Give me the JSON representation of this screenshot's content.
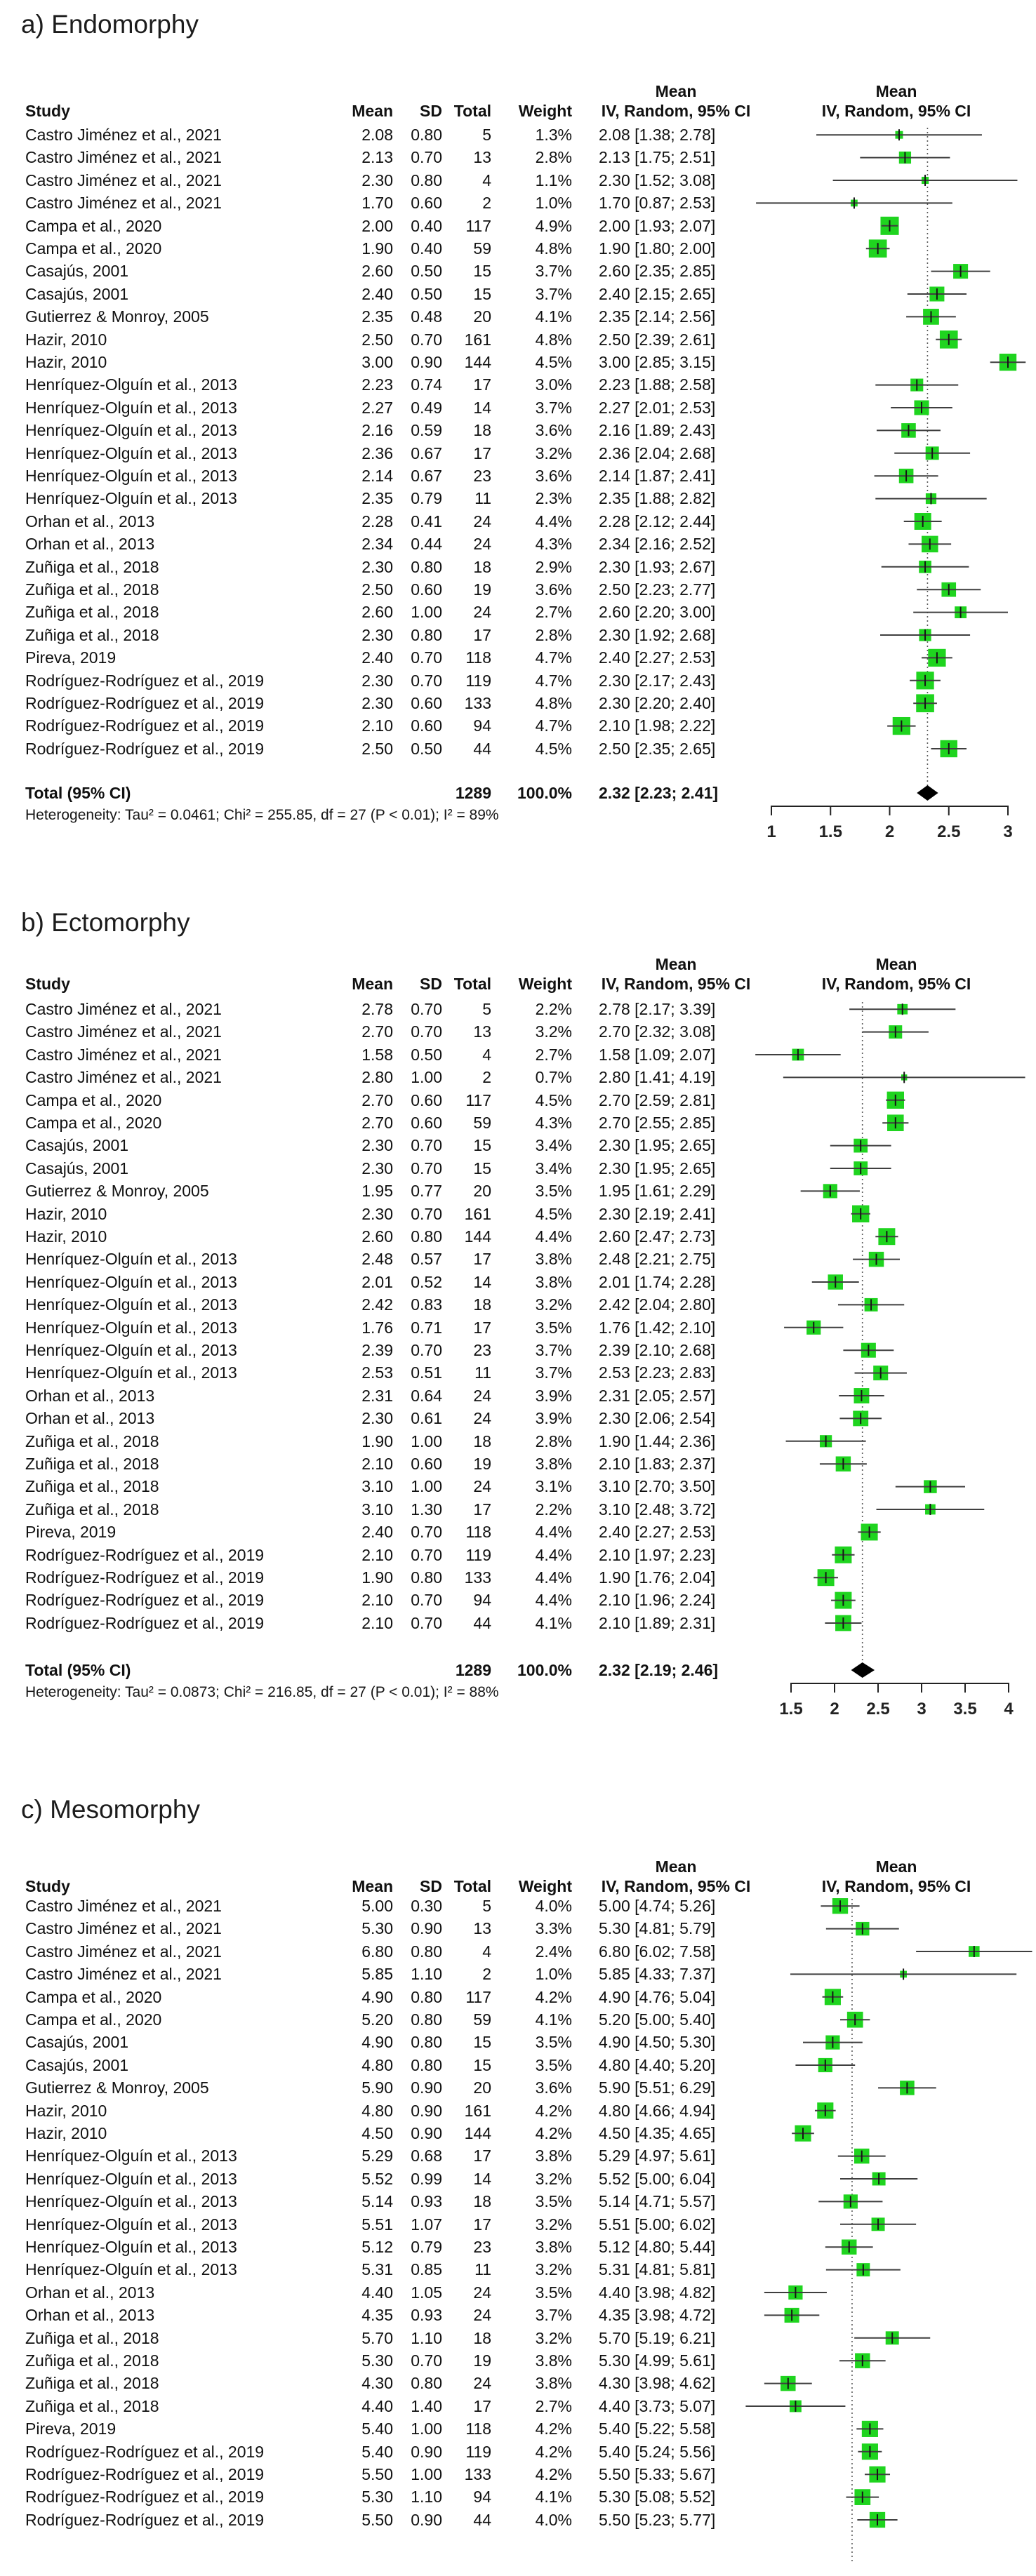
{
  "figure": {
    "marker_color": "#1fd41f",
    "ci_line_color": "#3f3f3f",
    "diamond_color": "#000000",
    "row_format": [
      "study",
      "mean",
      "sd",
      "total",
      "weight",
      "ci_text",
      "ci_low",
      "ci_high"
    ]
  },
  "chart_data": [
    {
      "type": "forest",
      "panel_label": "a) Endomorphy",
      "effect_measure": "Mean",
      "model": "IV, Random, 95% CI",
      "columns": [
        "Study",
        "Mean",
        "SD",
        "Total",
        "Weight",
        "IV, Random, 95% CI"
      ],
      "studies": [
        [
          "Castro Jiménez et al., 2021",
          "2.08",
          "0.80",
          "5",
          "1.3%",
          "2.08 [1.38; 2.78]",
          1.38,
          2.78
        ],
        [
          "Castro Jiménez et al., 2021",
          "2.13",
          "0.70",
          "13",
          "2.8%",
          "2.13 [1.75; 2.51]",
          1.75,
          2.51
        ],
        [
          "Castro Jiménez et al., 2021",
          "2.30",
          "0.80",
          "4",
          "1.1%",
          "2.30 [1.52; 3.08]",
          1.52,
          3.08
        ],
        [
          "Castro Jiménez et al., 2021",
          "1.70",
          "0.60",
          "2",
          "1.0%",
          "1.70 [0.87; 2.53]",
          0.87,
          2.53
        ],
        [
          "Campa et al., 2020",
          "2.00",
          "0.40",
          "117",
          "4.9%",
          "2.00 [1.93; 2.07]",
          1.93,
          2.07
        ],
        [
          "Campa et al., 2020",
          "1.90",
          "0.40",
          "59",
          "4.8%",
          "1.90 [1.80; 2.00]",
          1.8,
          2.0
        ],
        [
          "Casajús, 2001",
          "2.60",
          "0.50",
          "15",
          "3.7%",
          "2.60 [2.35; 2.85]",
          2.35,
          2.85
        ],
        [
          "Casajús, 2001",
          "2.40",
          "0.50",
          "15",
          "3.7%",
          "2.40 [2.15; 2.65]",
          2.15,
          2.65
        ],
        [
          "Gutierrez & Monroy, 2005",
          "2.35",
          "0.48",
          "20",
          "4.1%",
          "2.35 [2.14; 2.56]",
          2.14,
          2.56
        ],
        [
          "Hazir, 2010",
          "2.50",
          "0.70",
          "161",
          "4.8%",
          "2.50 [2.39; 2.61]",
          2.39,
          2.61
        ],
        [
          "Hazir, 2010",
          "3.00",
          "0.90",
          "144",
          "4.5%",
          "3.00 [2.85; 3.15]",
          2.85,
          3.15
        ],
        [
          "Henríquez-Olguín et al., 2013",
          "2.23",
          "0.74",
          "17",
          "3.0%",
          "2.23 [1.88; 2.58]",
          1.88,
          2.58
        ],
        [
          "Henríquez-Olguín et al., 2013",
          "2.27",
          "0.49",
          "14",
          "3.7%",
          "2.27 [2.01; 2.53]",
          2.01,
          2.53
        ],
        [
          "Henríquez-Olguín et al., 2013",
          "2.16",
          "0.59",
          "18",
          "3.6%",
          "2.16 [1.89; 2.43]",
          1.89,
          2.43
        ],
        [
          "Henríquez-Olguín et al., 2013",
          "2.36",
          "0.67",
          "17",
          "3.2%",
          "2.36 [2.04; 2.68]",
          2.04,
          2.68
        ],
        [
          "Henríquez-Olguín et al., 2013",
          "2.14",
          "0.67",
          "23",
          "3.6%",
          "2.14 [1.87; 2.41]",
          1.87,
          2.41
        ],
        [
          "Henríquez-Olguín et al., 2013",
          "2.35",
          "0.79",
          "11",
          "2.3%",
          "2.35 [1.88; 2.82]",
          1.88,
          2.82
        ],
        [
          "Orhan et al., 2013",
          "2.28",
          "0.41",
          "24",
          "4.4%",
          "2.28 [2.12; 2.44]",
          2.12,
          2.44
        ],
        [
          "Orhan et al., 2013",
          "2.34",
          "0.44",
          "24",
          "4.3%",
          "2.34 [2.16; 2.52]",
          2.16,
          2.52
        ],
        [
          "Zuñiga et al., 2018",
          "2.30",
          "0.80",
          "18",
          "2.9%",
          "2.30 [1.93; 2.67]",
          1.93,
          2.67
        ],
        [
          "Zuñiga et al., 2018",
          "2.50",
          "0.60",
          "19",
          "3.6%",
          "2.50 [2.23; 2.77]",
          2.23,
          2.77
        ],
        [
          "Zuñiga et al., 2018",
          "2.60",
          "1.00",
          "24",
          "2.7%",
          "2.60 [2.20; 3.00]",
          2.2,
          3.0
        ],
        [
          "Zuñiga et al., 2018",
          "2.30",
          "0.80",
          "17",
          "2.8%",
          "2.30 [1.92; 2.68]",
          1.92,
          2.68
        ],
        [
          "Pireva, 2019",
          "2.40",
          "0.70",
          "118",
          "4.7%",
          "2.40 [2.27; 2.53]",
          2.27,
          2.53
        ],
        [
          "Rodríguez-Rodríguez et al., 2019",
          "2.30",
          "0.70",
          "119",
          "4.7%",
          "2.30 [2.17; 2.43]",
          2.17,
          2.43
        ],
        [
          "Rodríguez-Rodríguez et al., 2019",
          "2.30",
          "0.60",
          "133",
          "4.8%",
          "2.30 [2.20; 2.40]",
          2.2,
          2.4
        ],
        [
          "Rodríguez-Rodríguez et al., 2019",
          "2.10",
          "0.60",
          "94",
          "4.7%",
          "2.10 [1.98; 2.22]",
          1.98,
          2.22
        ],
        [
          "Rodríguez-Rodríguez et al., 2019",
          "2.50",
          "0.50",
          "44",
          "4.5%",
          "2.50 [2.35; 2.65]",
          2.35,
          2.65
        ]
      ],
      "total": {
        "label": "Total (95% CI)",
        "total": "1289",
        "weight": "100.0%",
        "ci_text": "2.32 [2.23; 2.41]",
        "mean": 2.32,
        "lo": 2.23,
        "hi": 2.41
      },
      "heterogeneity": "Heterogeneity: Tau² = 0.0461; Chi² = 255.85, df = 27 (P < 0.01); I² = 89%",
      "axis": {
        "min": 1,
        "max": 3,
        "ticks": [
          1,
          1.5,
          2,
          2.5,
          3
        ],
        "labels": [
          "1",
          "1.5",
          "2",
          "2.5",
          "3"
        ],
        "ref": 2.32
      }
    },
    {
      "type": "forest",
      "panel_label": "b) Ectomorphy",
      "effect_measure": "Mean",
      "model": "IV, Random, 95% CI",
      "columns": [
        "Study",
        "Mean",
        "SD",
        "Total",
        "Weight",
        "IV, Random, 95% CI"
      ],
      "studies": [
        [
          "Castro Jiménez et al., 2021",
          "2.78",
          "0.70",
          "5",
          "2.2%",
          "2.78 [2.17; 3.39]",
          2.17,
          3.39
        ],
        [
          "Castro Jiménez et al., 2021",
          "2.70",
          "0.70",
          "13",
          "3.2%",
          "2.70 [2.32; 3.08]",
          2.32,
          3.08
        ],
        [
          "Castro Jiménez et al., 2021",
          "1.58",
          "0.50",
          "4",
          "2.7%",
          "1.58 [1.09; 2.07]",
          1.09,
          2.07
        ],
        [
          "Castro Jiménez et al., 2021",
          "2.80",
          "1.00",
          "2",
          "0.7%",
          "2.80 [1.41; 4.19]",
          1.41,
          4.19
        ],
        [
          "Campa et al., 2020",
          "2.70",
          "0.60",
          "117",
          "4.5%",
          "2.70 [2.59; 2.81]",
          2.59,
          2.81
        ],
        [
          "Campa et al., 2020",
          "2.70",
          "0.60",
          "59",
          "4.3%",
          "2.70 [2.55; 2.85]",
          2.55,
          2.85
        ],
        [
          "Casajús, 2001",
          "2.30",
          "0.70",
          "15",
          "3.4%",
          "2.30 [1.95; 2.65]",
          1.95,
          2.65
        ],
        [
          "Casajús, 2001",
          "2.30",
          "0.70",
          "15",
          "3.4%",
          "2.30 [1.95; 2.65]",
          1.95,
          2.65
        ],
        [
          "Gutierrez & Monroy, 2005",
          "1.95",
          "0.77",
          "20",
          "3.5%",
          "1.95 [1.61; 2.29]",
          1.61,
          2.29
        ],
        [
          "Hazir, 2010",
          "2.30",
          "0.70",
          "161",
          "4.5%",
          "2.30 [2.19; 2.41]",
          2.19,
          2.41
        ],
        [
          "Hazir, 2010",
          "2.60",
          "0.80",
          "144",
          "4.4%",
          "2.60 [2.47; 2.73]",
          2.47,
          2.73
        ],
        [
          "Henríquez-Olguín et al., 2013",
          "2.48",
          "0.57",
          "17",
          "3.8%",
          "2.48 [2.21; 2.75]",
          2.21,
          2.75
        ],
        [
          "Henríquez-Olguín et al., 2013",
          "2.01",
          "0.52",
          "14",
          "3.8%",
          "2.01 [1.74; 2.28]",
          1.74,
          2.28
        ],
        [
          "Henríquez-Olguín et al., 2013",
          "2.42",
          "0.83",
          "18",
          "3.2%",
          "2.42 [2.04; 2.80]",
          2.04,
          2.8
        ],
        [
          "Henríquez-Olguín et al., 2013",
          "1.76",
          "0.71",
          "17",
          "3.5%",
          "1.76 [1.42; 2.10]",
          1.42,
          2.1
        ],
        [
          "Henríquez-Olguín et al., 2013",
          "2.39",
          "0.70",
          "23",
          "3.7%",
          "2.39 [2.10; 2.68]",
          2.1,
          2.68
        ],
        [
          "Henríquez-Olguín et al., 2013",
          "2.53",
          "0.51",
          "11",
          "3.7%",
          "2.53 [2.23; 2.83]",
          2.23,
          2.83
        ],
        [
          "Orhan et al., 2013",
          "2.31",
          "0.64",
          "24",
          "3.9%",
          "2.31 [2.05; 2.57]",
          2.05,
          2.57
        ],
        [
          "Orhan et al., 2013",
          "2.30",
          "0.61",
          "24",
          "3.9%",
          "2.30 [2.06; 2.54]",
          2.06,
          2.54
        ],
        [
          "Zuñiga et al., 2018",
          "1.90",
          "1.00",
          "18",
          "2.8%",
          "1.90 [1.44; 2.36]",
          1.44,
          2.36
        ],
        [
          "Zuñiga et al., 2018",
          "2.10",
          "0.60",
          "19",
          "3.8%",
          "2.10 [1.83; 2.37]",
          1.83,
          2.37
        ],
        [
          "Zuñiga et al., 2018",
          "3.10",
          "1.00",
          "24",
          "3.1%",
          "3.10 [2.70; 3.50]",
          2.7,
          3.5
        ],
        [
          "Zuñiga et al., 2018",
          "3.10",
          "1.30",
          "17",
          "2.2%",
          "3.10 [2.48; 3.72]",
          2.48,
          3.72
        ],
        [
          "Pireva, 2019",
          "2.40",
          "0.70",
          "118",
          "4.4%",
          "2.40 [2.27; 2.53]",
          2.27,
          2.53
        ],
        [
          "Rodríguez-Rodríguez et al., 2019",
          "2.10",
          "0.70",
          "119",
          "4.4%",
          "2.10 [1.97; 2.23]",
          1.97,
          2.23
        ],
        [
          "Rodríguez-Rodríguez et al., 2019",
          "1.90",
          "0.80",
          "133",
          "4.4%",
          "1.90 [1.76; 2.04]",
          1.76,
          2.04
        ],
        [
          "Rodríguez-Rodríguez et al., 2019",
          "2.10",
          "0.70",
          "94",
          "4.4%",
          "2.10 [1.96; 2.24]",
          1.96,
          2.24
        ],
        [
          "Rodríguez-Rodríguez et al., 2019",
          "2.10",
          "0.70",
          "44",
          "4.1%",
          "2.10 [1.89; 2.31]",
          1.89,
          2.31
        ]
      ],
      "total": {
        "label": "Total (95% CI)",
        "total": "1289",
        "weight": "100.0%",
        "ci_text": "2.32 [2.19; 2.46]",
        "mean": 2.32,
        "lo": 2.19,
        "hi": 2.46
      },
      "heterogeneity": "Heterogeneity: Tau² = 0.0873; Chi² = 216.85, df = 27 (P < 0.01); I² = 88%",
      "axis": {
        "min": 1.5,
        "max": 4,
        "ticks": [
          1.5,
          2,
          2.5,
          3,
          3.5,
          4
        ],
        "labels": [
          "1.5",
          "2",
          "2.5",
          "3",
          "3.5",
          "4"
        ],
        "ref": 2.32
      }
    },
    {
      "type": "forest",
      "panel_label": "c) Mesomorphy",
      "effect_measure": "Mean",
      "model": "IV, Random, 95% CI",
      "columns": [
        "Study",
        "Mean",
        "SD",
        "Total",
        "Weight",
        "IV, Random, 95% CI"
      ],
      "studies": [
        [
          "Castro Jiménez et al., 2021",
          "5.00",
          "0.30",
          "5",
          "4.0%",
          "5.00 [4.74; 5.26]",
          4.74,
          5.26
        ],
        [
          "Castro Jiménez et al., 2021",
          "5.30",
          "0.90",
          "13",
          "3.3%",
          "5.30 [4.81; 5.79]",
          4.81,
          5.79
        ],
        [
          "Castro Jiménez et al., 2021",
          "6.80",
          "0.80",
          "4",
          "2.4%",
          "6.80 [6.02; 7.58]",
          6.02,
          7.58
        ],
        [
          "Castro Jiménez et al., 2021",
          "5.85",
          "1.10",
          "2",
          "1.0%",
          "5.85 [4.33; 7.37]",
          4.33,
          7.37
        ],
        [
          "Campa et al., 2020",
          "4.90",
          "0.80",
          "117",
          "4.2%",
          "4.90 [4.76; 5.04]",
          4.76,
          5.04
        ],
        [
          "Campa et al., 2020",
          "5.20",
          "0.80",
          "59",
          "4.1%",
          "5.20 [5.00; 5.40]",
          5.0,
          5.4
        ],
        [
          "Casajús, 2001",
          "4.90",
          "0.80",
          "15",
          "3.5%",
          "4.90 [4.50; 5.30]",
          4.5,
          5.3
        ],
        [
          "Casajús, 2001",
          "4.80",
          "0.80",
          "15",
          "3.5%",
          "4.80 [4.40; 5.20]",
          4.4,
          5.2
        ],
        [
          "Gutierrez & Monroy, 2005",
          "5.90",
          "0.90",
          "20",
          "3.6%",
          "5.90 [5.51; 6.29]",
          5.51,
          6.29
        ],
        [
          "Hazir, 2010",
          "4.80",
          "0.90",
          "161",
          "4.2%",
          "4.80 [4.66; 4.94]",
          4.66,
          4.94
        ],
        [
          "Hazir, 2010",
          "4.50",
          "0.90",
          "144",
          "4.2%",
          "4.50 [4.35; 4.65]",
          4.35,
          4.65
        ],
        [
          "Henríquez-Olguín et al., 2013",
          "5.29",
          "0.68",
          "17",
          "3.8%",
          "5.29 [4.97; 5.61]",
          4.97,
          5.61
        ],
        [
          "Henríquez-Olguín et al., 2013",
          "5.52",
          "0.99",
          "14",
          "3.2%",
          "5.52 [5.00; 6.04]",
          5.0,
          6.04
        ],
        [
          "Henríquez-Olguín et al., 2013",
          "5.14",
          "0.93",
          "18",
          "3.5%",
          "5.14 [4.71; 5.57]",
          4.71,
          5.57
        ],
        [
          "Henríquez-Olguín et al., 2013",
          "5.51",
          "1.07",
          "17",
          "3.2%",
          "5.51 [5.00; 6.02]",
          5.0,
          6.02
        ],
        [
          "Henríquez-Olguín et al., 2013",
          "5.12",
          "0.79",
          "23",
          "3.8%",
          "5.12 [4.80; 5.44]",
          4.8,
          5.44
        ],
        [
          "Henríquez-Olguín et al., 2013",
          "5.31",
          "0.85",
          "11",
          "3.2%",
          "5.31 [4.81; 5.81]",
          4.81,
          5.81
        ],
        [
          "Orhan et al., 2013",
          "4.40",
          "1.05",
          "24",
          "3.5%",
          "4.40 [3.98; 4.82]",
          3.98,
          4.82
        ],
        [
          "Orhan et al., 2013",
          "4.35",
          "0.93",
          "24",
          "3.7%",
          "4.35 [3.98; 4.72]",
          3.98,
          4.72
        ],
        [
          "Zuñiga et al., 2018",
          "5.70",
          "1.10",
          "18",
          "3.2%",
          "5.70 [5.19; 6.21]",
          5.19,
          6.21
        ],
        [
          "Zuñiga et al., 2018",
          "5.30",
          "0.70",
          "19",
          "3.8%",
          "5.30 [4.99; 5.61]",
          4.99,
          5.61
        ],
        [
          "Zuñiga et al., 2018",
          "4.30",
          "0.80",
          "24",
          "3.8%",
          "4.30 [3.98; 4.62]",
          3.98,
          4.62
        ],
        [
          "Zuñiga et al., 2018",
          "4.40",
          "1.40",
          "17",
          "2.7%",
          "4.40 [3.73; 5.07]",
          3.73,
          5.07
        ],
        [
          "Pireva, 2019",
          "5.40",
          "1.00",
          "118",
          "4.2%",
          "5.40 [5.22; 5.58]",
          5.22,
          5.58
        ],
        [
          "Rodríguez-Rodríguez et al., 2019",
          "5.40",
          "0.90",
          "119",
          "4.2%",
          "5.40 [5.24; 5.56]",
          5.24,
          5.56
        ],
        [
          "Rodríguez-Rodríguez et al., 2019",
          "5.50",
          "1.00",
          "133",
          "4.2%",
          "5.50 [5.33; 5.67]",
          5.33,
          5.67
        ],
        [
          "Rodríguez-Rodríguez et al., 2019",
          "5.30",
          "1.10",
          "94",
          "4.1%",
          "5.30 [5.08; 5.52]",
          5.08,
          5.52
        ],
        [
          "Rodríguez-Rodríguez et al., 2019",
          "5.50",
          "0.90",
          "44",
          "4.0%",
          "5.50 [5.23; 5.77]",
          5.23,
          5.77
        ]
      ],
      "total": null,
      "heterogeneity": null,
      "axis": null,
      "ref": 5.16
    }
  ]
}
